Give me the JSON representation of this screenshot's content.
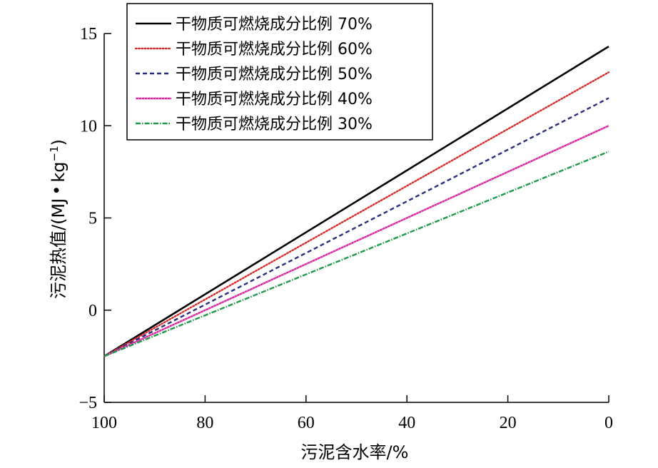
{
  "chart_data": {
    "type": "line",
    "xlabel": "污泥含水率/%",
    "ylabel": "污泥热值/(MJ·kg⁻¹)",
    "ylabel_main": "污泥热值/(MJ",
    "ylabel_dot": "•",
    "ylabel_unit": "kg",
    "ylabel_exp": "−1",
    "ylabel_close": ")",
    "xlim": [
      100,
      0
    ],
    "ylim": [
      -5,
      15
    ],
    "x_ticks": [
      100,
      80,
      60,
      40,
      20,
      0
    ],
    "x_tick_labels": [
      "100",
      "80",
      "60",
      "40",
      "20",
      "0"
    ],
    "y_ticks": [
      15,
      10,
      5,
      0,
      -5
    ],
    "y_tick_labels": [
      "15",
      "10",
      "5",
      "0",
      "−5"
    ],
    "legend_position": "top-left",
    "grid": false,
    "series": [
      {
        "name": "干物质可燃烧成分比例 70%",
        "color": "#000000",
        "style": "solid",
        "x": [
          100,
          0
        ],
        "y": [
          -2.5,
          14.3
        ]
      },
      {
        "name": "干物质可燃烧成分比例 60%",
        "color": "#d42a2a",
        "style": "dotted",
        "x": [
          100,
          0
        ],
        "y": [
          -2.5,
          12.9
        ]
      },
      {
        "name": "干物质可燃烧成分比例 50%",
        "color": "#2b2f7a",
        "style": "dashed",
        "x": [
          100,
          0
        ],
        "y": [
          -2.5,
          11.5
        ]
      },
      {
        "name": "干物质可燃烧成分比例 40%",
        "color": "#d4259e",
        "style": "solid-dots",
        "x": [
          100,
          0
        ],
        "y": [
          -2.5,
          10.0
        ]
      },
      {
        "name": "干物质可燃烧成分比例 30%",
        "color": "#1f9a4c",
        "style": "dashdot",
        "x": [
          100,
          0
        ],
        "y": [
          -2.5,
          8.6
        ]
      }
    ]
  }
}
